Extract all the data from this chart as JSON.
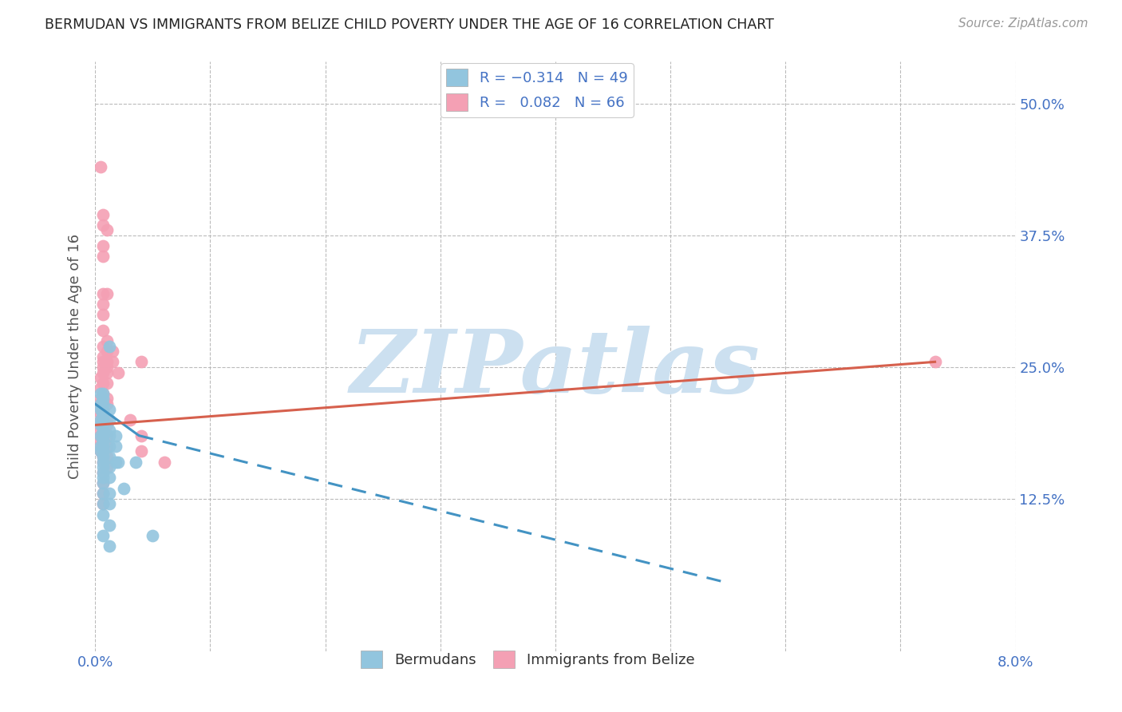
{
  "title": "BERMUDAN VS IMMIGRANTS FROM BELIZE CHILD POVERTY UNDER THE AGE OF 16 CORRELATION CHART",
  "source": "Source: ZipAtlas.com",
  "ylabel": "Child Poverty Under the Age of 16",
  "xlim": [
    0.0,
    0.08
  ],
  "ylim": [
    -0.02,
    0.54
  ],
  "plot_ylim": [
    0.0,
    0.5
  ],
  "xticks": [
    0.0,
    0.01,
    0.02,
    0.03,
    0.04,
    0.05,
    0.06,
    0.07,
    0.08
  ],
  "xticklabels": [
    "0.0%",
    "",
    "",
    "",
    "",
    "",
    "",
    "",
    "8.0%"
  ],
  "yticks": [
    0.0,
    0.125,
    0.25,
    0.375,
    0.5
  ],
  "yticklabels_right": [
    "",
    "12.5%",
    "25.0%",
    "37.5%",
    "50.0%"
  ],
  "blue_color": "#92c5de",
  "pink_color": "#f4a0b4",
  "blue_line_color": "#4393c3",
  "pink_line_color": "#d6604d",
  "blue_scatter": [
    [
      0.0005,
      0.225
    ],
    [
      0.0005,
      0.215
    ],
    [
      0.0005,
      0.21
    ],
    [
      0.0005,
      0.2
    ],
    [
      0.0005,
      0.195
    ],
    [
      0.0005,
      0.185
    ],
    [
      0.0005,
      0.175
    ],
    [
      0.0005,
      0.17
    ],
    [
      0.0007,
      0.225
    ],
    [
      0.0007,
      0.22
    ],
    [
      0.0007,
      0.215
    ],
    [
      0.0007,
      0.21
    ],
    [
      0.0007,
      0.205
    ],
    [
      0.0007,
      0.2
    ],
    [
      0.0007,
      0.19
    ],
    [
      0.0007,
      0.185
    ],
    [
      0.0007,
      0.18
    ],
    [
      0.0007,
      0.175
    ],
    [
      0.0007,
      0.17
    ],
    [
      0.0007,
      0.165
    ],
    [
      0.0007,
      0.16
    ],
    [
      0.0007,
      0.155
    ],
    [
      0.0007,
      0.15
    ],
    [
      0.0007,
      0.145
    ],
    [
      0.0007,
      0.14
    ],
    [
      0.0007,
      0.13
    ],
    [
      0.0007,
      0.12
    ],
    [
      0.0007,
      0.11
    ],
    [
      0.0007,
      0.09
    ],
    [
      0.0012,
      0.27
    ],
    [
      0.0012,
      0.21
    ],
    [
      0.0012,
      0.2
    ],
    [
      0.0012,
      0.19
    ],
    [
      0.0012,
      0.185
    ],
    [
      0.0012,
      0.175
    ],
    [
      0.0012,
      0.165
    ],
    [
      0.0012,
      0.155
    ],
    [
      0.0012,
      0.145
    ],
    [
      0.0012,
      0.13
    ],
    [
      0.0012,
      0.12
    ],
    [
      0.0012,
      0.1
    ],
    [
      0.0012,
      0.08
    ],
    [
      0.0018,
      0.185
    ],
    [
      0.0018,
      0.175
    ],
    [
      0.0018,
      0.16
    ],
    [
      0.002,
      0.16
    ],
    [
      0.0025,
      0.135
    ],
    [
      0.0035,
      0.16
    ],
    [
      0.005,
      0.09
    ]
  ],
  "pink_scatter": [
    [
      0.0005,
      0.44
    ],
    [
      0.0005,
      0.24
    ],
    [
      0.0005,
      0.23
    ],
    [
      0.0005,
      0.22
    ],
    [
      0.0005,
      0.215
    ],
    [
      0.0005,
      0.21
    ],
    [
      0.0005,
      0.205
    ],
    [
      0.0005,
      0.2
    ],
    [
      0.0005,
      0.195
    ],
    [
      0.0005,
      0.19
    ],
    [
      0.0005,
      0.185
    ],
    [
      0.0005,
      0.18
    ],
    [
      0.0005,
      0.175
    ],
    [
      0.0005,
      0.17
    ],
    [
      0.0007,
      0.395
    ],
    [
      0.0007,
      0.385
    ],
    [
      0.0007,
      0.365
    ],
    [
      0.0007,
      0.355
    ],
    [
      0.0007,
      0.32
    ],
    [
      0.0007,
      0.31
    ],
    [
      0.0007,
      0.3
    ],
    [
      0.0007,
      0.285
    ],
    [
      0.0007,
      0.27
    ],
    [
      0.0007,
      0.26
    ],
    [
      0.0007,
      0.255
    ],
    [
      0.0007,
      0.25
    ],
    [
      0.0007,
      0.245
    ],
    [
      0.0007,
      0.235
    ],
    [
      0.0007,
      0.225
    ],
    [
      0.0007,
      0.215
    ],
    [
      0.0007,
      0.2
    ],
    [
      0.0007,
      0.195
    ],
    [
      0.0007,
      0.185
    ],
    [
      0.0007,
      0.18
    ],
    [
      0.0007,
      0.175
    ],
    [
      0.0007,
      0.165
    ],
    [
      0.0007,
      0.16
    ],
    [
      0.0007,
      0.15
    ],
    [
      0.0007,
      0.14
    ],
    [
      0.0007,
      0.13
    ],
    [
      0.0007,
      0.12
    ],
    [
      0.001,
      0.38
    ],
    [
      0.001,
      0.32
    ],
    [
      0.001,
      0.275
    ],
    [
      0.001,
      0.265
    ],
    [
      0.001,
      0.255
    ],
    [
      0.001,
      0.25
    ],
    [
      0.001,
      0.245
    ],
    [
      0.001,
      0.235
    ],
    [
      0.001,
      0.22
    ],
    [
      0.001,
      0.215
    ],
    [
      0.001,
      0.2
    ],
    [
      0.001,
      0.195
    ],
    [
      0.001,
      0.185
    ],
    [
      0.001,
      0.175
    ],
    [
      0.001,
      0.165
    ],
    [
      0.001,
      0.155
    ],
    [
      0.0015,
      0.265
    ],
    [
      0.0015,
      0.255
    ],
    [
      0.002,
      0.245
    ],
    [
      0.003,
      0.2
    ],
    [
      0.004,
      0.255
    ],
    [
      0.004,
      0.185
    ],
    [
      0.004,
      0.17
    ],
    [
      0.006,
      0.16
    ],
    [
      0.073,
      0.255
    ]
  ],
  "blue_trendline_solid": [
    [
      0.0,
      0.215
    ],
    [
      0.0038,
      0.185
    ]
  ],
  "blue_trendline_dash": [
    [
      0.0038,
      0.185
    ],
    [
      0.055,
      0.045
    ]
  ],
  "pink_trendline": [
    [
      0.0,
      0.195
    ],
    [
      0.073,
      0.255
    ]
  ],
  "watermark_text": "ZIPatlas",
  "watermark_color": "#cce0f0",
  "background_color": "#ffffff",
  "grid_color": "#bbbbbb",
  "tick_color": "#4472C4",
  "label_color": "#4472C4",
  "title_color": "#222222",
  "source_color": "#999999",
  "ylabel_color": "#555555"
}
